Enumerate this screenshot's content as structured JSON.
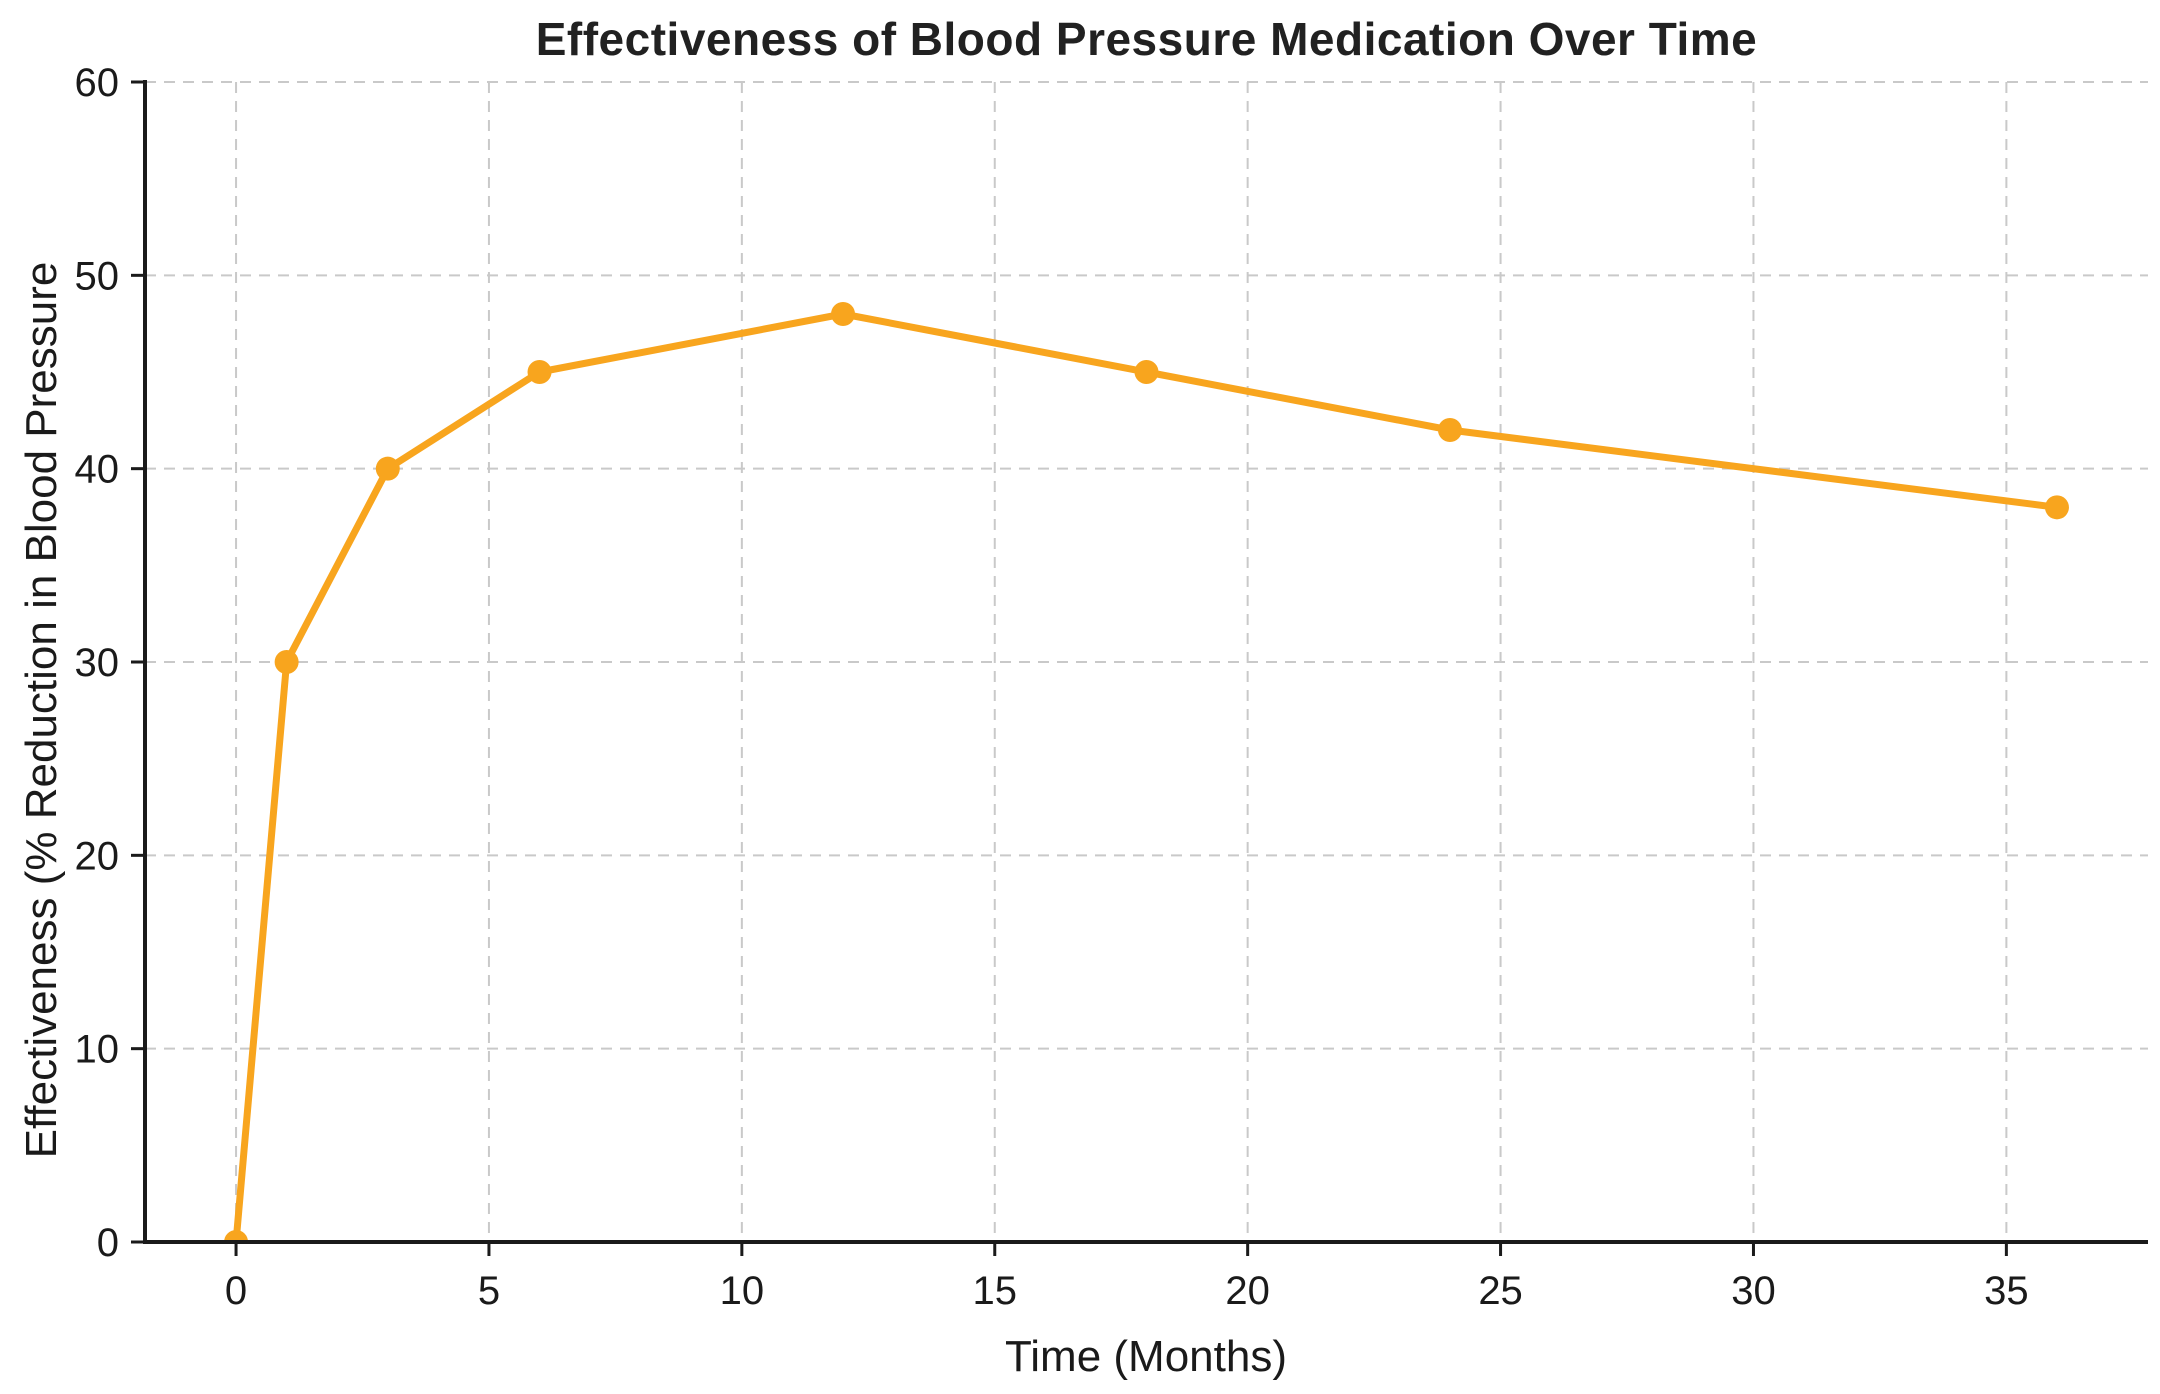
{
  "chart_data": {
    "type": "line",
    "title": "Effectiveness of Blood Pressure Medication Over Time",
    "xlabel": "Time (Months)",
    "ylabel": "Effectiveness (% Reduction in Blood Pressure",
    "series": [
      {
        "name": "Effectiveness",
        "x": [
          0,
          1,
          3,
          6,
          12,
          18,
          24,
          36
        ],
        "y": [
          0,
          30,
          40,
          45,
          48,
          45,
          42,
          38
        ]
      }
    ],
    "xticks": [
      0,
      5,
      10,
      15,
      20,
      25,
      30,
      35
    ],
    "yticks": [
      0,
      10,
      20,
      30,
      40,
      50,
      60
    ],
    "xlim": [
      -1.8,
      37.8
    ],
    "ylim": [
      0,
      60
    ],
    "grid": true,
    "grid_style": "dashed",
    "legend": null,
    "colors": {
      "line": "#F8A51E",
      "marker": "#F8A51E",
      "grid": "#c9c9c9",
      "spine": "#1a1a1a",
      "text": "#1a1a1a",
      "title": "#212121",
      "background": "#ffffff"
    }
  }
}
